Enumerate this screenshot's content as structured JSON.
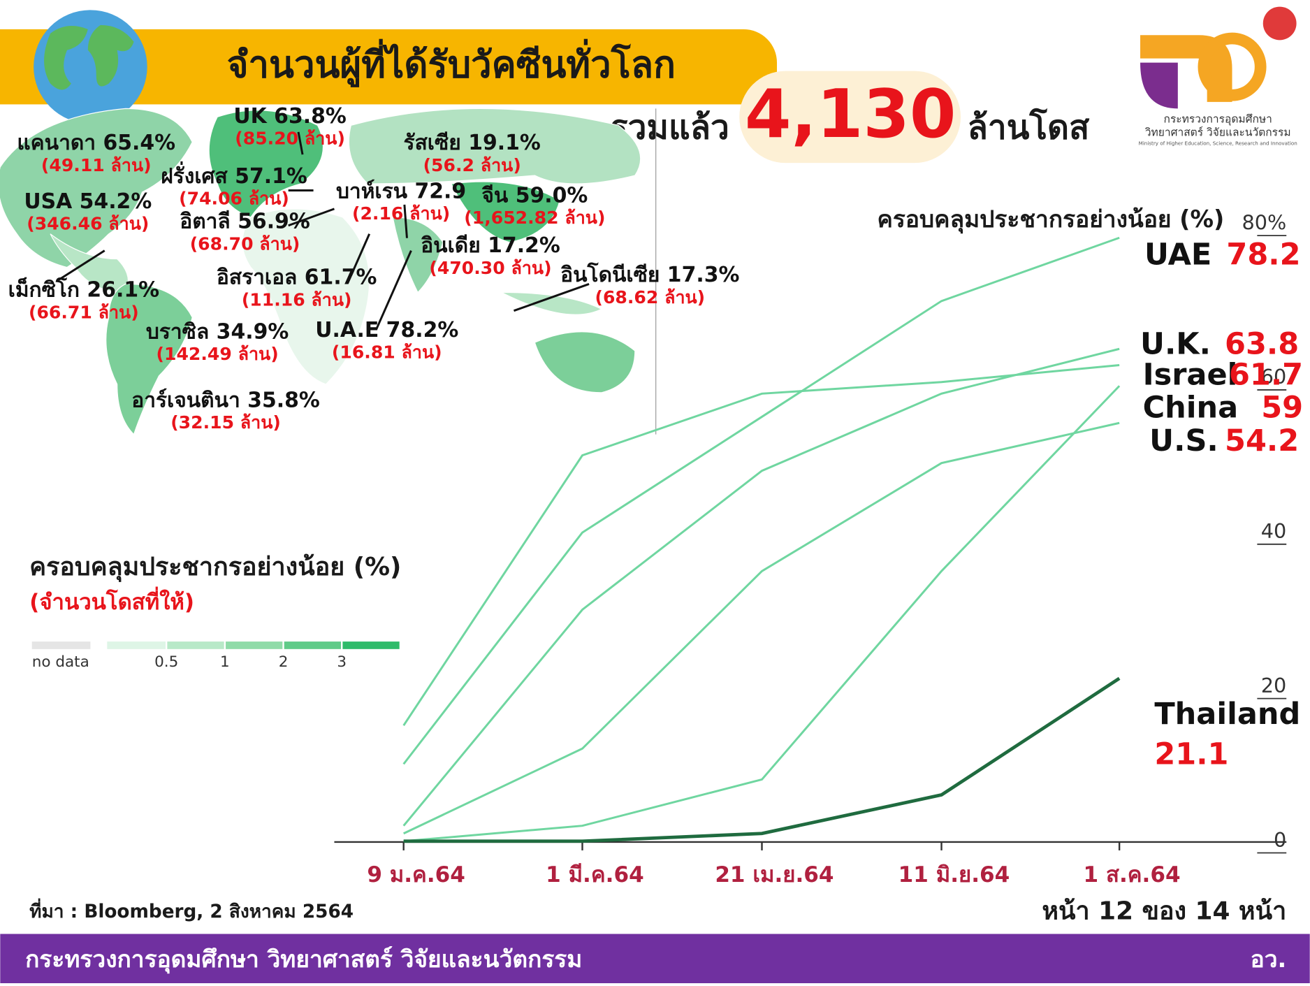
{
  "header": {
    "title": "จำนวนผู้ที่ได้รับวัคซีนทั่วโลก",
    "total_prefix": "รวมแล้ว",
    "total": "4,130",
    "total_suffix": "ล้านโดส",
    "logo_line1": "กระทรวงการอุดมศึกษา",
    "logo_line2": "วิทยาศาสตร์ วิจัยและนวัตกรรม",
    "logo_line3": "Ministry of Higher Education, Science, Research and Innovation"
  },
  "map": {
    "labels": [
      {
        "name": "แคนาดา 65.4%",
        "doses": "(49.11 ล้าน)"
      },
      {
        "name": "UK 63.8%",
        "doses": "(85.20 ล้าน)"
      },
      {
        "name": "รัสเซีย 19.1%",
        "doses": "(56.2 ล้าน)"
      },
      {
        "name": "ฝรั่งเศส 57.1%",
        "doses": "(74.06 ล้าน)"
      },
      {
        "name": "บาห์เรน 72.9",
        "doses": "(2.16 ล้าน)"
      },
      {
        "name": "จีน 59.0%",
        "doses": "(1,652.82 ล้าน)"
      },
      {
        "name": "USA 54.2%",
        "doses": "(346.46 ล้าน)"
      },
      {
        "name": "อิตาลี 56.9%",
        "doses": "(68.70 ล้าน)"
      },
      {
        "name": "อินเดีย 17.2%",
        "doses": "(470.30 ล้าน)"
      },
      {
        "name": "เม็กซิโก 26.1%",
        "doses": "(66.71 ล้าน)"
      },
      {
        "name": "อิสราเอล 61.7%",
        "doses": "(11.16 ล้าน)"
      },
      {
        "name": "อินโดนีเซีย 17.3%",
        "doses": "(68.62 ล้าน)"
      },
      {
        "name": "บราซิล 34.9%",
        "doses": "(142.49 ล้าน)"
      },
      {
        "name": "U.A.E 78.2%",
        "doses": "(16.81 ล้าน)"
      },
      {
        "name": "อาร์เจนตินา 35.8%",
        "doses": "(32.15 ล้าน)"
      }
    ],
    "legend_title": "ครอบคลุมประชากรอย่างน้อย (%)",
    "legend_subtitle": "(จำนวนโดสที่ให้)",
    "legend_no_data": "no data",
    "legend_ticks": [
      "0.5",
      "1",
      "2",
      "3"
    ]
  },
  "chart_data": {
    "type": "line",
    "title": "ครอบคลุมประชากรอย่างน้อย (%)",
    "categories": [
      "9 ม.ค.64",
      "1 มี.ค.64",
      "21 เม.ย.64",
      "11 มิ.ย.64",
      "1 ส.ค.64"
    ],
    "series": [
      {
        "name": "UAE",
        "color": "#6fd6a0",
        "values": [
          10,
          40,
          55,
          70,
          78.2
        ]
      },
      {
        "name": "U.K.",
        "color": "#6fd6a0",
        "values": [
          2,
          30,
          48,
          58,
          63.8
        ]
      },
      {
        "name": "Israel",
        "color": "#6fd6a0",
        "values": [
          15,
          50,
          58,
          59.5,
          61.7
        ]
      },
      {
        "name": "China",
        "color": "#6fd6a0",
        "values": [
          0,
          2,
          8,
          35,
          59.0
        ]
      },
      {
        "name": "U.S.",
        "color": "#6fd6a0",
        "values": [
          1,
          12,
          35,
          49,
          54.2
        ]
      },
      {
        "name": "Thailand",
        "color": "#1f6b3f",
        "values": [
          0,
          0,
          1,
          6,
          21.1
        ]
      }
    ],
    "ylim": [
      0,
      80
    ],
    "yticks": [
      0,
      20,
      40,
      60,
      {
        "value": 80,
        "label": "80%"
      }
    ]
  },
  "footer": {
    "source": "ที่มา : Bloomberg, 2 สิงหาคม 2564",
    "page": "หน้า 12 ของ 14 หน้า",
    "ministry": "กระทรวงการอุดมศึกษา วิทยาศาสตร์ วิจัยและนวัตกรรม",
    "short": "อว."
  }
}
